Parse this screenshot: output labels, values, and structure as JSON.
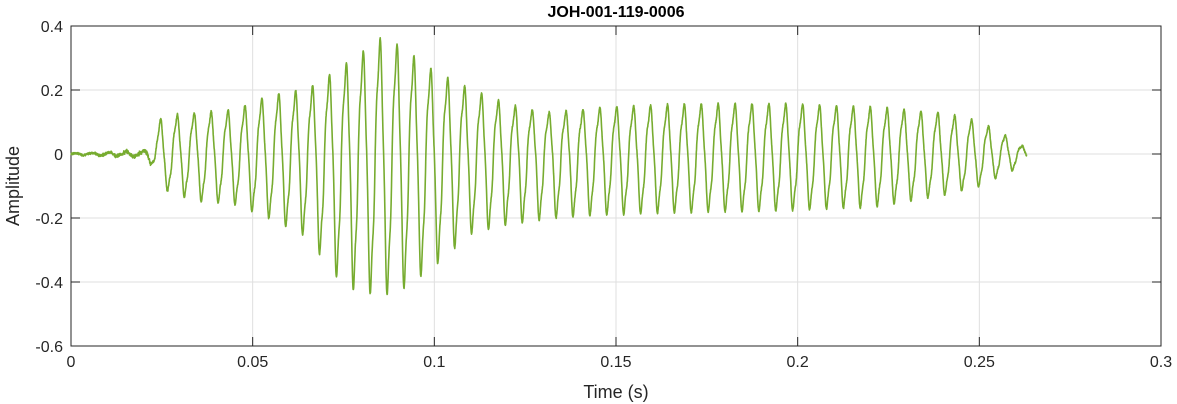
{
  "chart_data": {
    "type": "line",
    "title": "JOH-001-119-0006",
    "xlabel": "Time (s)",
    "ylabel": "Amplitude",
    "xlim": [
      0,
      0.3
    ],
    "ylim": [
      -0.6,
      0.4
    ],
    "xticks": [
      0,
      0.05,
      0.1,
      0.15,
      0.2,
      0.25,
      0.3
    ],
    "xtick_labels": [
      "0",
      "0.05",
      "0.1",
      "0.15",
      "0.2",
      "0.25",
      "0.3"
    ],
    "yticks": [
      -0.6,
      -0.4,
      -0.2,
      0,
      0.2,
      0.4
    ],
    "ytick_labels": [
      "-0.6",
      "-0.4",
      "-0.2",
      "0",
      "0.2",
      "0.4"
    ],
    "grid": true,
    "line_color": "#77AC30",
    "series": [
      {
        "envelope_pos": [
          [
            0,
            0.002
          ],
          [
            0.02,
            0.01
          ],
          [
            0.0225,
            0.05
          ],
          [
            0.025,
            0.13
          ],
          [
            0.035,
            0.14
          ],
          [
            0.045,
            0.15
          ],
          [
            0.055,
            0.2
          ],
          [
            0.065,
            0.22
          ],
          [
            0.075,
            0.3
          ],
          [
            0.085,
            0.39
          ],
          [
            0.09,
            0.37
          ],
          [
            0.1,
            0.28
          ],
          [
            0.11,
            0.22
          ],
          [
            0.12,
            0.17
          ],
          [
            0.13,
            0.14
          ],
          [
            0.14,
            0.15
          ],
          [
            0.15,
            0.16
          ],
          [
            0.17,
            0.17
          ],
          [
            0.2,
            0.17
          ],
          [
            0.22,
            0.16
          ],
          [
            0.24,
            0.14
          ],
          [
            0.25,
            0.11
          ],
          [
            0.255,
            0.08
          ],
          [
            0.26,
            0.04
          ],
          [
            0.263,
            0.02
          ]
        ],
        "envelope_neg": [
          [
            0,
            -0.002
          ],
          [
            0.02,
            -0.01
          ],
          [
            0.0225,
            -0.04
          ],
          [
            0.025,
            -0.12
          ],
          [
            0.035,
            -0.16
          ],
          [
            0.045,
            -0.17
          ],
          [
            0.055,
            -0.22
          ],
          [
            0.065,
            -0.28
          ],
          [
            0.075,
            -0.45
          ],
          [
            0.085,
            -0.48
          ],
          [
            0.09,
            -0.47
          ],
          [
            0.1,
            -0.38
          ],
          [
            0.11,
            -0.27
          ],
          [
            0.12,
            -0.24
          ],
          [
            0.13,
            -0.22
          ],
          [
            0.14,
            -0.21
          ],
          [
            0.16,
            -0.2
          ],
          [
            0.2,
            -0.19
          ],
          [
            0.22,
            -0.18
          ],
          [
            0.24,
            -0.14
          ],
          [
            0.25,
            -0.11
          ],
          [
            0.255,
            -0.08
          ],
          [
            0.26,
            -0.05
          ],
          [
            0.263,
            -0.02
          ]
        ]
      }
    ]
  }
}
